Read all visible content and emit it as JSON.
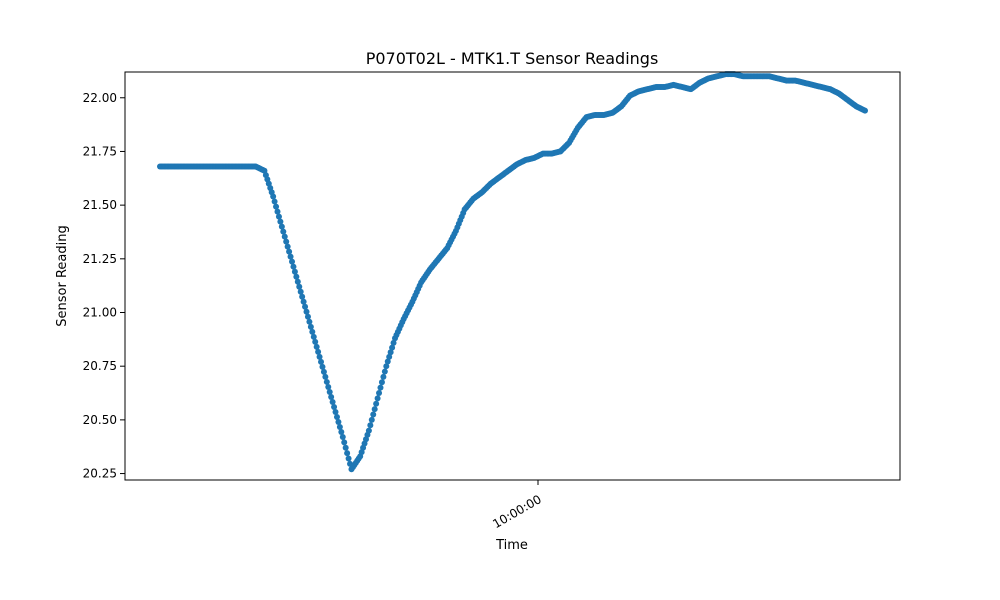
{
  "chart_data": {
    "type": "scatter",
    "title": "P070T02L - MTK1.T Sensor Readings",
    "xlabel": "Time",
    "ylabel": "Sensor Reading",
    "x_tick_labels": [
      "10:00:00"
    ],
    "y_ticks": [
      20.25,
      20.5,
      20.75,
      21.0,
      21.25,
      21.5,
      21.75,
      22.0
    ],
    "y_tick_labels": [
      "20.25",
      "20.50",
      "20.75",
      "21.00",
      "21.25",
      "21.50",
      "21.75",
      "22.00"
    ],
    "ylim": [
      20.22,
      22.12
    ],
    "grid": false,
    "legend": "none",
    "color": "#1f77b4",
    "series": [
      {
        "x": [
          0,
          3,
          6,
          9,
          12,
          15,
          18,
          21,
          24,
          27,
          30,
          33,
          36,
          39,
          42,
          45,
          48,
          51,
          54,
          57,
          60,
          63,
          66,
          69,
          72,
          75,
          78,
          81,
          84,
          87,
          90,
          93,
          96,
          99,
          102,
          105,
          108,
          111,
          114,
          117,
          120,
          123,
          126,
          129,
          132,
          135,
          138,
          141,
          144,
          147,
          150,
          153,
          156,
          159,
          162,
          165,
          168,
          171,
          174,
          177,
          180,
          183,
          186,
          189,
          192,
          195,
          198,
          201,
          204,
          207,
          210,
          213,
          216,
          219,
          222,
          225,
          228,
          231,
          234,
          237,
          240,
          243
        ],
        "y": [
          21.68,
          21.68,
          21.68,
          21.68,
          21.68,
          21.68,
          21.68,
          21.68,
          21.68,
          21.68,
          21.68,
          21.68,
          21.66,
          21.54,
          21.4,
          21.26,
          21.12,
          20.98,
          20.84,
          20.7,
          20.56,
          20.42,
          20.27,
          20.33,
          20.45,
          20.6,
          20.75,
          20.88,
          20.97,
          21.05,
          21.14,
          21.2,
          21.25,
          21.3,
          21.38,
          21.48,
          21.53,
          21.56,
          21.6,
          21.63,
          21.66,
          21.69,
          21.71,
          21.72,
          21.74,
          21.74,
          21.75,
          21.79,
          21.86,
          21.91,
          21.92,
          21.92,
          21.93,
          21.96,
          22.01,
          22.03,
          22.04,
          22.05,
          22.05,
          22.06,
          22.05,
          22.04,
          22.07,
          22.09,
          22.1,
          22.11,
          22.11,
          22.1,
          22.1,
          22.1,
          22.1,
          22.09,
          22.08,
          22.08,
          22.07,
          22.06,
          22.05,
          22.04,
          22.02,
          21.99,
          21.96,
          21.94
        ]
      }
    ]
  }
}
